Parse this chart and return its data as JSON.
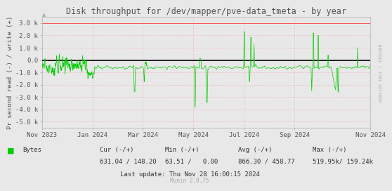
{
  "title": "Disk throughput for /dev/mapper/pve-data_tmeta - by year",
  "ylabel": "Pr second read (-) / write (+)",
  "bg_color": "#e8e8e8",
  "plot_bg_color": "#e8e8e8",
  "grid_color": "#ff9999",
  "line_color": "#00cc00",
  "zero_line_color": "#000000",
  "ylim": [
    -5500,
    3500
  ],
  "yticks": [
    -5000,
    -4000,
    -3000,
    -2000,
    -1000,
    0,
    1000,
    2000,
    3000
  ],
  "ytick_labels": [
    "-5.0 k",
    "-4.0 k",
    "-3.0 k",
    "-2.0 k",
    "-1.0 k",
    "0.0",
    "1.0 k",
    "2.0 k",
    "3.0 k"
  ],
  "xticklabels": [
    "Nov 2023",
    "Jan 2024",
    "Mar 2024",
    "May 2024",
    "Jul 2024",
    "Sep 2024",
    "Nov 2024"
  ],
  "xtick_pos_frac": [
    0.0,
    0.1538,
    0.3077,
    0.4615,
    0.6154,
    0.7692,
    1.0
  ],
  "legend_label": "Bytes",
  "legend_color": "#00cc00",
  "footer_cur": "Cur (-/+)",
  "footer_min": "Min (-/+)",
  "footer_avg": "Avg (-/+)",
  "footer_max": "Max (-/+)",
  "footer_cur_val": "631.04 / 148.20",
  "footer_min_val": "63.51 /   0.00",
  "footer_avg_val": "866.30 / 458.77",
  "footer_max_val": "519.95k/ 159.24k",
  "footer_lastupdate": "Last update: Thu Nov 28 16:00:15 2024",
  "munin_version": "Munin 2.0.75",
  "rrdtool_label": "RRDTOOL / TOBI OETIKER",
  "upper_limit": 3000,
  "title_color": "#555555",
  "tick_color": "#555555",
  "spine_color": "#bbbbbb"
}
